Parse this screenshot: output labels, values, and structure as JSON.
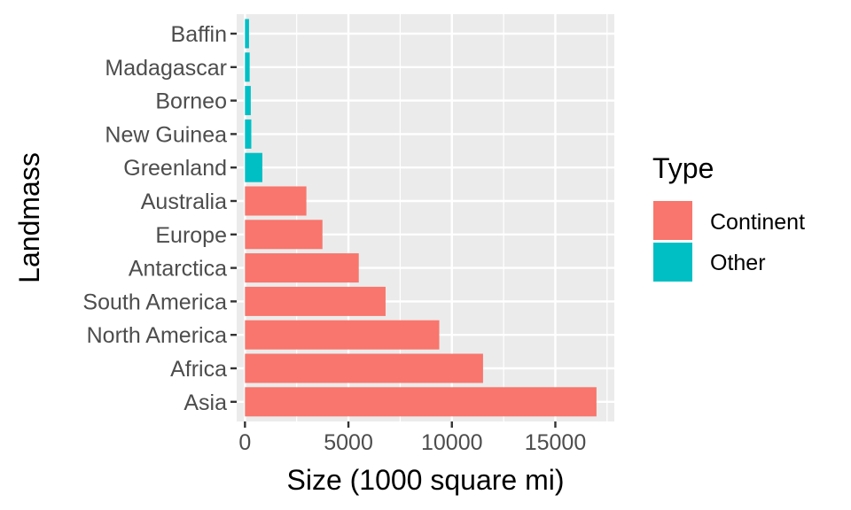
{
  "chart_data": {
    "type": "bar",
    "orientation": "horizontal",
    "xlabel": "Size (1000 square mi)",
    "ylabel": "Landmass",
    "xlim": [
      -400,
      17850
    ],
    "x_ticks": [
      0,
      5000,
      10000,
      15000
    ],
    "x_tick_labels": [
      "0",
      "5000",
      "10000",
      "15000"
    ],
    "grid": true,
    "legend_position": "right",
    "legend": {
      "title": "Type",
      "entries": [
        {
          "label": "Continent",
          "color": "#F8766D"
        },
        {
          "label": "Other",
          "color": "#00BFC4"
        }
      ]
    },
    "bars": [
      {
        "category": "Baffin",
        "value": 196,
        "type": "Other"
      },
      {
        "category": "Madagascar",
        "value": 227,
        "type": "Other"
      },
      {
        "category": "Borneo",
        "value": 280,
        "type": "Other"
      },
      {
        "category": "New Guinea",
        "value": 306,
        "type": "Other"
      },
      {
        "category": "Greenland",
        "value": 840,
        "type": "Other"
      },
      {
        "category": "Australia",
        "value": 2968,
        "type": "Continent"
      },
      {
        "category": "Europe",
        "value": 3745,
        "type": "Continent"
      },
      {
        "category": "Antarctica",
        "value": 5500,
        "type": "Continent"
      },
      {
        "category": "South America",
        "value": 6795,
        "type": "Continent"
      },
      {
        "category": "North America",
        "value": 9390,
        "type": "Continent"
      },
      {
        "category": "Africa",
        "value": 11506,
        "type": "Continent"
      },
      {
        "category": "Asia",
        "value": 16988,
        "type": "Continent"
      }
    ]
  }
}
